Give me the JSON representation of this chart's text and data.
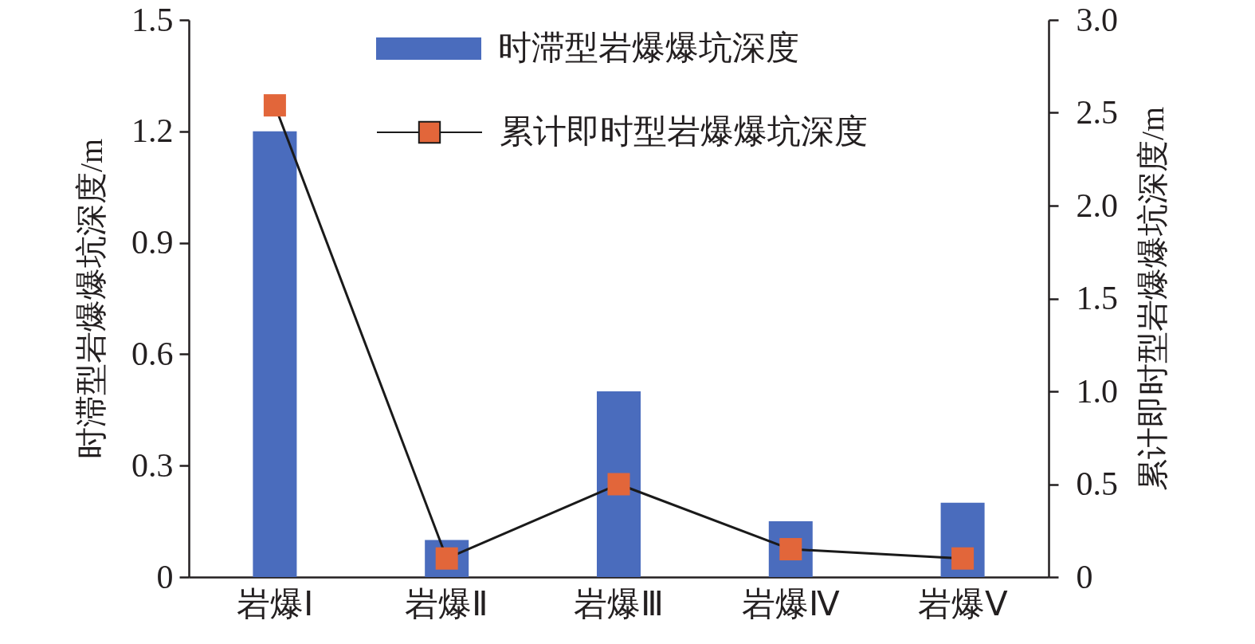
{
  "chart_data": {
    "type": "bar",
    "categories": [
      "岩爆Ⅰ",
      "岩爆Ⅱ",
      "岩爆Ⅲ",
      "岩爆Ⅳ",
      "岩爆Ⅴ"
    ],
    "ylabel": "时滞型岩爆爆坑深度/m",
    "y2label": "累计即时型岩爆爆坑深度/m",
    "ylim": [
      0,
      1.5
    ],
    "yticks": [
      0,
      0.3,
      0.6,
      0.9,
      1.2,
      1.5
    ],
    "y2lim": [
      0,
      3
    ],
    "y2ticks": [
      0,
      0.5,
      {
        "value": 1,
        "label": "1.0"
      },
      1.5,
      {
        "value": 2,
        "label": "2.0"
      },
      2.5,
      {
        "value": 3,
        "label": "3.0"
      }
    ],
    "series": [
      {
        "name": "时滞型岩爆爆坑深度",
        "color": "#4a6cbd",
        "values": [
          1.2,
          0.1,
          0.5,
          0.15,
          0.2
        ]
      },
      {
        "name": "累计即时型岩爆爆坑深度",
        "type": "line",
        "axis": "y2",
        "color": "#e2663a",
        "values": [
          2.54,
          0.1,
          0.5,
          0.15,
          0.1
        ]
      }
    ],
    "legend": "top",
    "marker": "square",
    "line_style": "solid",
    "grid": false
  }
}
